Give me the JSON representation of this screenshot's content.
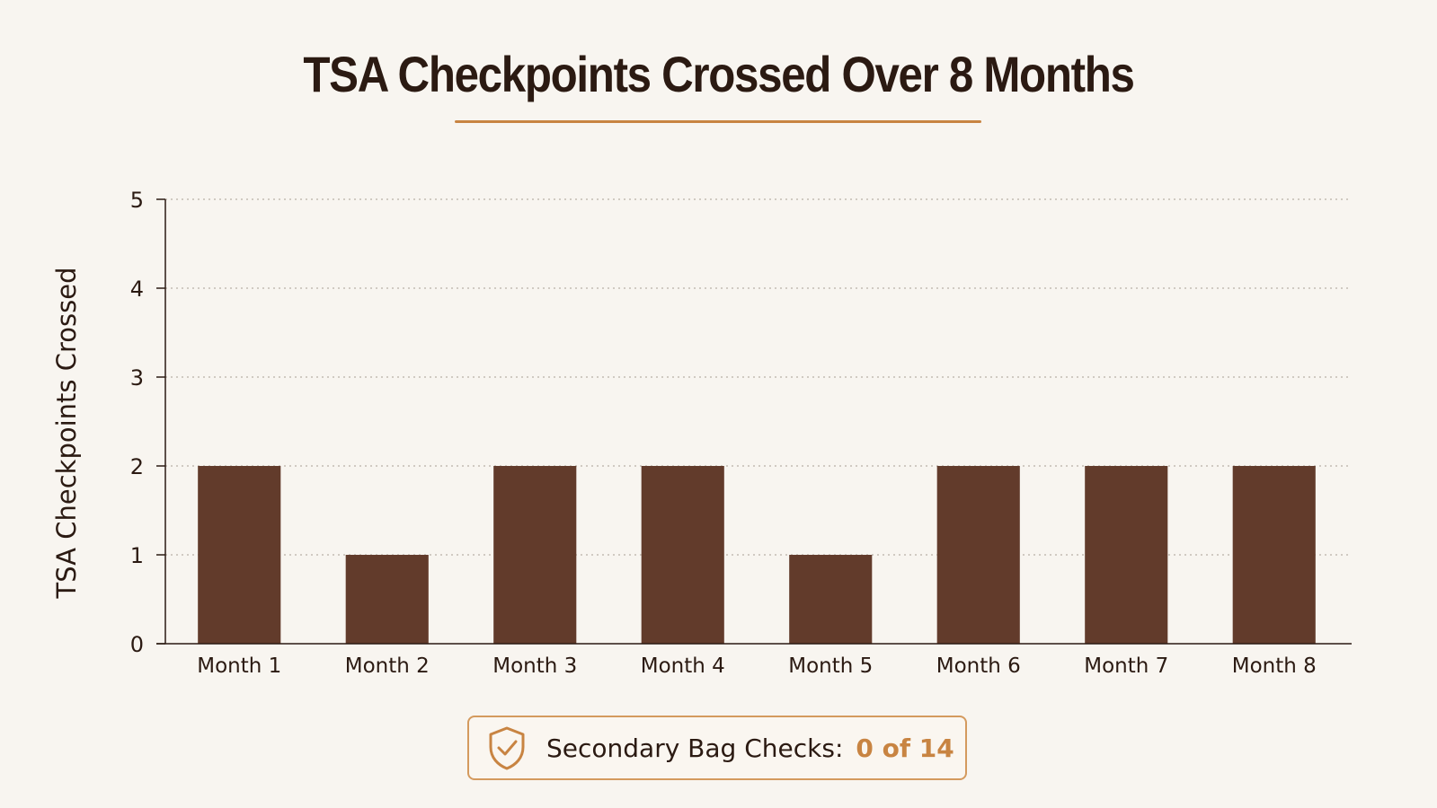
{
  "chart_data": {
    "type": "bar",
    "title": "TSA Checkpoints Crossed Over 8 Months",
    "xlabel": "",
    "ylabel": "TSA Checkpoints Crossed",
    "categories": [
      "Month 1",
      "Month 2",
      "Month 3",
      "Month 4",
      "Month 5",
      "Month 6",
      "Month 7",
      "Month 8"
    ],
    "values": [
      2,
      1,
      2,
      2,
      1,
      2,
      2,
      2
    ],
    "ylim": [
      0,
      5
    ],
    "yticks": [
      0,
      1,
      2,
      3,
      4,
      5
    ],
    "grid": true,
    "bar_color": "#623b2b"
  },
  "callout": {
    "icon": "shield-check-icon",
    "label": "Secondary Bag Checks:",
    "value": "0 of 14",
    "accent_color": "#c88442"
  }
}
